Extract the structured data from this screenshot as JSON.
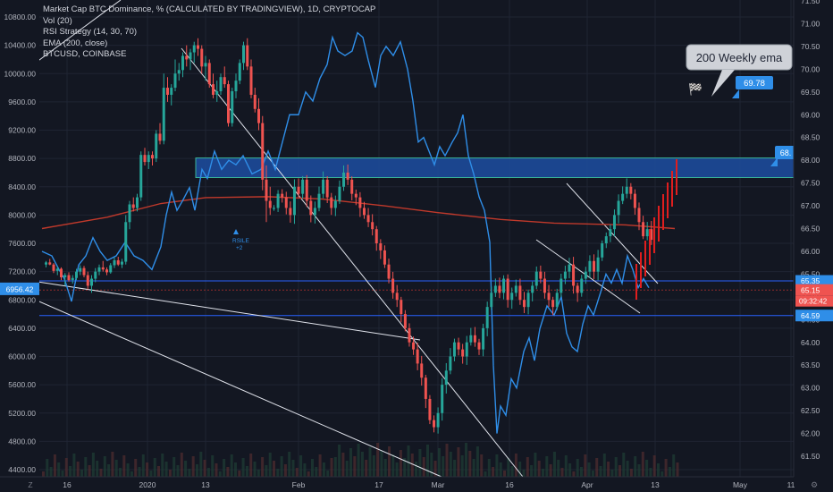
{
  "chart_data": {
    "type": "candlestick",
    "legend": [
      "Market Cap BTC Dominance, % (CALCULATED BY TRADINGVIEW), 1D, CRYPTOCAP",
      "Vol (20)",
      "RSI Strategy (14, 30, 70)",
      "EMA (200, close)",
      "BTCUSD, COINBASE"
    ],
    "left_axis": {
      "min": 4400,
      "max": 10800,
      "ticks": [
        "10800.00",
        "10400.00",
        "10000.00",
        "9600.00",
        "9200.00",
        "8800.00",
        "8400.00",
        "8000.00",
        "7600.00",
        "7200.00",
        "6800.00",
        "6400.00",
        "6000.00",
        "5600.00",
        "5200.00",
        "4800.00",
        "4400.00"
      ]
    },
    "right_axis": {
      "min": 61.5,
      "max": 71.5,
      "ticks": [
        "71.50",
        "71.00",
        "70.50",
        "70.00",
        "69.50",
        "69.00",
        "68.50",
        "68.00",
        "67.50",
        "67.00",
        "66.50",
        "66.00",
        "65.50",
        "65.00",
        "64.50",
        "64.00",
        "63.50",
        "63.00",
        "62.50",
        "62.00",
        "61.50"
      ]
    },
    "x_ticks": [
      "16",
      "2020",
      "13",
      "Feb",
      "17",
      "Mar",
      "16",
      "Apr",
      "13",
      "May",
      "11"
    ],
    "price_badges": {
      "left_btc": "6956.42",
      "right_top": "68.",
      "right_a": "65.35",
      "right_b": "65.15",
      "right_timer": "09:32:42",
      "right_c": "64.59"
    },
    "annotations": {
      "callout": "200 Weekly ema",
      "callout_badge": "69.78",
      "signal_label": "RSILE",
      "signal_sub": "+2"
    },
    "colors": {
      "up": "#26a69a",
      "down": "#ef5350",
      "dominance": "#2f8ee8",
      "ema": "#c0392b",
      "zone": "#1c4a9a",
      "hline": "#2962ff"
    },
    "btc_candles": [
      [
        7300,
        7350,
        7260,
        7330
      ],
      [
        7330,
        7380,
        7290,
        7300
      ],
      [
        7300,
        7320,
        7180,
        7210
      ],
      [
        7210,
        7270,
        7150,
        7240
      ],
      [
        7240,
        7260,
        7080,
        7120
      ],
      [
        7120,
        7180,
        7000,
        7150
      ],
      [
        7150,
        7190,
        7060,
        7080
      ],
      [
        7080,
        7150,
        7030,
        7110
      ],
      [
        7110,
        7240,
        7080,
        7200
      ],
      [
        7200,
        7290,
        7150,
        7250
      ],
      [
        7250,
        7280,
        7120,
        7150
      ],
      [
        7150,
        7200,
        6950,
        7000
      ],
      [
        7000,
        7150,
        6900,
        7100
      ],
      [
        7100,
        7250,
        7050,
        7200
      ],
      [
        7200,
        7300,
        7150,
        7260
      ],
      [
        7260,
        7350,
        7200,
        7230
      ],
      [
        7230,
        7260,
        7150,
        7190
      ],
      [
        7190,
        7320,
        7170,
        7290
      ],
      [
        7290,
        7400,
        7250,
        7360
      ],
      [
        7360,
        7410,
        7280,
        7300
      ],
      [
        7300,
        7380,
        7250,
        7340
      ],
      [
        7340,
        8000,
        7300,
        7900
      ],
      [
        7900,
        8200,
        7800,
        8150
      ],
      [
        8150,
        8250,
        8050,
        8100
      ],
      [
        8100,
        8300,
        8050,
        8250
      ],
      [
        8250,
        8900,
        8200,
        8850
      ],
      [
        8850,
        8950,
        8700,
        8750
      ],
      [
        8750,
        8900,
        8650,
        8850
      ],
      [
        8850,
        8900,
        8700,
        8800
      ],
      [
        8800,
        9200,
        8750,
        9150
      ],
      [
        9150,
        9300,
        9000,
        9050
      ],
      [
        9050,
        10000,
        9000,
        9800
      ],
      [
        9800,
        9950,
        9600,
        9700
      ],
      [
        9700,
        9850,
        9550,
        9800
      ],
      [
        9800,
        10200,
        9750,
        10000
      ],
      [
        10000,
        10150,
        9900,
        10050
      ],
      [
        10050,
        10300,
        9950,
        10250
      ],
      [
        10250,
        10400,
        10100,
        10200
      ],
      [
        10200,
        10350,
        10050,
        10300
      ],
      [
        10300,
        10450,
        10150,
        10400
      ],
      [
        10400,
        10500,
        10250,
        10350
      ],
      [
        10350,
        10400,
        10000,
        10100
      ],
      [
        10100,
        10250,
        9900,
        10150
      ],
      [
        10150,
        10200,
        9800,
        9850
      ],
      [
        9850,
        10000,
        9650,
        9700
      ],
      [
        9700,
        9900,
        9600,
        9750
      ],
      [
        9750,
        10000,
        9700,
        9950
      ],
      [
        9950,
        10100,
        9800,
        9850
      ],
      [
        9850,
        9900,
        9250,
        9300
      ],
      [
        9300,
        9800,
        9250,
        9750
      ],
      [
        9750,
        10000,
        9650,
        9900
      ],
      [
        9900,
        10200,
        9850,
        10150
      ],
      [
        10150,
        10450,
        10050,
        10400
      ],
      [
        10400,
        10500,
        10050,
        10100
      ],
      [
        10100,
        10200,
        9650,
        9700
      ],
      [
        9700,
        9800,
        9450,
        9500
      ],
      [
        9500,
        9650,
        9200,
        9300
      ],
      [
        9300,
        9400,
        8350,
        8500
      ],
      [
        8500,
        8700,
        7900,
        8200
      ],
      [
        8200,
        8400,
        8000,
        8100
      ]
    ]
  }
}
